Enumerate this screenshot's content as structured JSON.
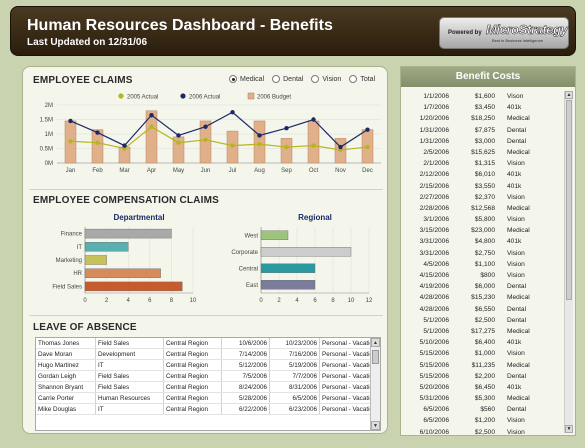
{
  "header": {
    "title": "Human Resources Dashboard - Benefits",
    "subtitle": "Last Updated on 12/31/06",
    "powered_by": "Powered by",
    "brand": "MicroStrategy",
    "brand_tagline": "Best in Business Intelligence"
  },
  "employee_claims": {
    "title": "EMPLOYEE CLAIMS",
    "radio_options": [
      {
        "label": "Medical",
        "selected": true
      },
      {
        "label": "Dental",
        "selected": false
      },
      {
        "label": "Vision",
        "selected": false
      },
      {
        "label": "Total",
        "selected": false
      }
    ]
  },
  "compensation": {
    "title": "EMPLOYEE COMPENSATION CLAIMS",
    "departmental_title": "Departmental",
    "regional_title": "Regional"
  },
  "leave": {
    "title": "LEAVE OF ABSENCE",
    "rows": [
      [
        "Thomas Jones",
        "Field Sales",
        "Central Region",
        "10/6/2006",
        "10/23/2006",
        "Personal - Vacation"
      ],
      [
        "Dave Moran",
        "Development",
        "Central Region",
        "7/14/2006",
        "7/16/2006",
        "Personal - Vacation"
      ],
      [
        "Hugo Martinez",
        "IT",
        "Central Region",
        "5/12/2006",
        "5/19/2006",
        "Personal - Vacation"
      ],
      [
        "Gordan Leigh",
        "Field Sales",
        "Central Region",
        "7/5/2006",
        "7/7/2006",
        "Personal - Vacation"
      ],
      [
        "Shannon Bryant",
        "Field Sales",
        "Central Region",
        "8/24/2006",
        "8/31/2006",
        "Personal - Vacation"
      ],
      [
        "Carrie Porter",
        "Human Resources",
        "Central Region",
        "5/28/2006",
        "6/5/2006",
        "Personal - Vacation"
      ],
      [
        "Mike Douglas",
        "IT",
        "Central Region",
        "6/22/2006",
        "6/23/2006",
        "Personal - Vacation"
      ]
    ]
  },
  "benefit_costs": {
    "title": "Benefit Costs",
    "rows": [
      [
        "1/1/2006",
        "$1,600",
        "Vison"
      ],
      [
        "1/7/2006",
        "$3,450",
        "401k"
      ],
      [
        "1/20/2006",
        "$18,250",
        "Medical"
      ],
      [
        "1/31/2006",
        "$7,875",
        "Dental"
      ],
      [
        "1/31/2006",
        "$3,000",
        "Dental"
      ],
      [
        "2/5/2006",
        "$15,625",
        "Medical"
      ],
      [
        "2/1/2006",
        "$1,315",
        "Vision"
      ],
      [
        "2/12/2006",
        "$6,010",
        "401k"
      ],
      [
        "2/15/2006",
        "$3,550",
        "401k"
      ],
      [
        "2/27/2006",
        "$2,370",
        "Vision"
      ],
      [
        "2/28/2006",
        "$12,568",
        "Medical"
      ],
      [
        "3/1/2006",
        "$5,800",
        "Vision"
      ],
      [
        "3/15/2006",
        "$23,000",
        "Medical"
      ],
      [
        "3/31/2006",
        "$4,800",
        "401k"
      ],
      [
        "3/31/2006",
        "$2,750",
        "Vision"
      ],
      [
        "4/5/2006",
        "$1,100",
        "Vision"
      ],
      [
        "4/15/2006",
        "$800",
        "Vision"
      ],
      [
        "4/19/2006",
        "$6,000",
        "Dental"
      ],
      [
        "4/28/2006",
        "$15,230",
        "Medical"
      ],
      [
        "4/28/2006",
        "$6,550",
        "Dental"
      ],
      [
        "5/1/2006",
        "$2,500",
        "Dental"
      ],
      [
        "5/1/2006",
        "$17,275",
        "Medical"
      ],
      [
        "5/10/2006",
        "$6,400",
        "401k"
      ],
      [
        "5/15/2006",
        "$1,000",
        "Vision"
      ],
      [
        "5/15/2006",
        "$11,235",
        "Medical"
      ],
      [
        "5/15/2006",
        "$2,200",
        "Dental"
      ],
      [
        "5/20/2006",
        "$6,450",
        "401k"
      ],
      [
        "5/31/2006",
        "$5,300",
        "Medical"
      ],
      [
        "6/5/2006",
        "$560",
        "Dental"
      ],
      [
        "6/5/2006",
        "$1,200",
        "Vision"
      ],
      [
        "6/10/2006",
        "$2,500",
        "Vision"
      ]
    ]
  },
  "chart_data": [
    {
      "type": "bar",
      "categories": [
        "Jan",
        "Feb",
        "Mar",
        "Apr",
        "May",
        "Jun",
        "Jul",
        "Aug",
        "Sep",
        "Oct",
        "Nov",
        "Dec"
      ],
      "series": [
        {
          "name": "2006 Budget",
          "values": [
            1450000,
            1150000,
            550000,
            1800000,
            900000,
            1450000,
            1100000,
            1450000,
            850000,
            1450000,
            850000,
            1150000
          ]
        },
        {
          "name": "2005 Actual",
          "values": [
            750000,
            700000,
            500000,
            1250000,
            700000,
            800000,
            600000,
            650000,
            550000,
            600000,
            450000,
            550000
          ]
        },
        {
          "name": "2006 Actual",
          "values": [
            1450000,
            1050000,
            600000,
            1650000,
            950000,
            1250000,
            1750000,
            950000,
            1200000,
            1500000,
            550000,
            1150000
          ]
        }
      ],
      "ylim": [
        0,
        2000000
      ],
      "yticks": [
        "0M",
        "0.5M",
        "1M",
        "1.5M",
        "2M"
      ],
      "colors": {
        "budget": "#e0b08a",
        "actual_2005": "#b5b51d",
        "actual_2006": "#1b2a66"
      }
    },
    {
      "type": "bar",
      "title": "Departmental",
      "categories": [
        "Finance",
        "IT",
        "Marketing",
        "HR",
        "Field Sales"
      ],
      "values": [
        8,
        4,
        2,
        7,
        9
      ],
      "xlim": [
        0,
        10
      ],
      "xticks": [
        "0",
        "2",
        "4",
        "6",
        "8",
        "10"
      ],
      "colors": [
        "#a9a9a9",
        "#5ab0b0",
        "#c7c15a",
        "#d88b5a",
        "#c75b2e"
      ]
    },
    {
      "type": "bar",
      "title": "Regional",
      "categories": [
        "West",
        "Corporate",
        "Central",
        "East"
      ],
      "values": [
        3,
        10,
        6,
        6
      ],
      "xlim": [
        0,
        12
      ],
      "xticks": [
        "0",
        "2",
        "4",
        "6",
        "8",
        "10",
        "12"
      ],
      "colors": [
        "#9cc47a",
        "#cccccc",
        "#2a9aa0",
        "#7b7c9c"
      ]
    }
  ]
}
